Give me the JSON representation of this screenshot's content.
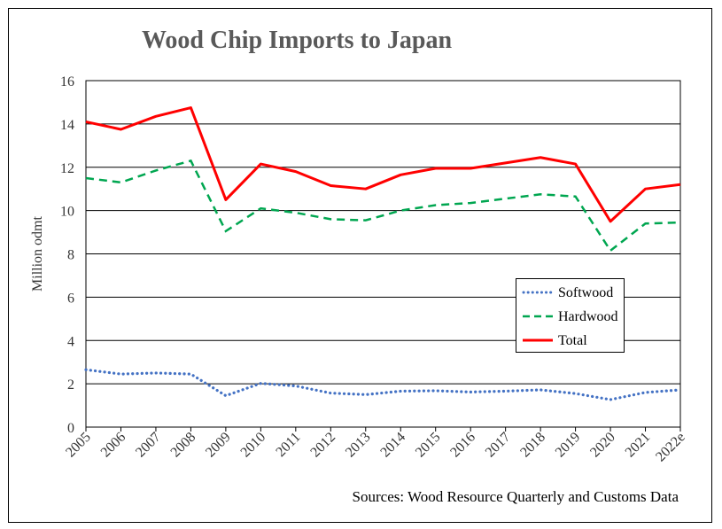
{
  "chart_data": {
    "type": "line",
    "title": "Wood Chip Imports to Japan",
    "ylabel": "Million odmt",
    "xlabel": "",
    "ylim": [
      0,
      16
    ],
    "yticks": [
      0,
      2,
      4,
      6,
      8,
      10,
      12,
      14,
      16
    ],
    "grid": "horizontal",
    "legend_position": "lower-right",
    "x": [
      "2005",
      "2006",
      "2007",
      "2008",
      "2009",
      "2010",
      "2011",
      "2012",
      "2013",
      "2014",
      "2015",
      "2016",
      "2017",
      "2018",
      "2019",
      "2020",
      "2021",
      "2022e"
    ],
    "series": [
      {
        "name": "Softwood",
        "style": "dotted",
        "color": "#4472C4",
        "values": [
          2.65,
          2.45,
          2.5,
          2.45,
          1.45,
          2.02,
          1.9,
          1.57,
          1.5,
          1.66,
          1.68,
          1.62,
          1.66,
          1.72,
          1.55,
          1.27,
          1.6,
          1.72
        ]
      },
      {
        "name": "Hardwood",
        "style": "dashed",
        "color": "#00A650",
        "values": [
          11.5,
          11.3,
          11.85,
          12.3,
          9.05,
          10.1,
          9.9,
          9.6,
          9.55,
          10.0,
          10.25,
          10.35,
          10.55,
          10.75,
          10.65,
          8.15,
          9.4,
          9.45
        ]
      },
      {
        "name": "Total",
        "style": "solid",
        "color": "#FF0000",
        "values": [
          14.1,
          13.75,
          14.35,
          14.75,
          10.5,
          12.15,
          11.8,
          11.15,
          11.0,
          11.65,
          11.95,
          11.95,
          12.2,
          12.45,
          12.15,
          9.5,
          11.0,
          11.2
        ]
      }
    ]
  },
  "source_note": "Sources: Wood Resource Quarterly and Customs Data"
}
